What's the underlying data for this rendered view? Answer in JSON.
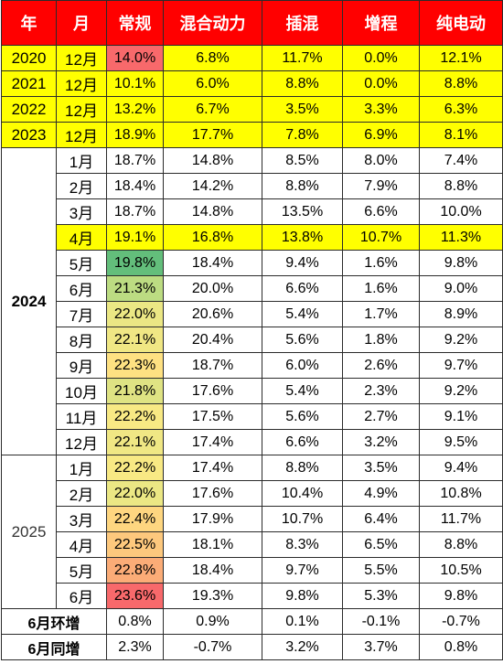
{
  "headers": [
    "年",
    "月",
    "常规",
    "混合动力",
    "插混",
    "增程",
    "纯电动"
  ],
  "rows": [
    {
      "year": "2020",
      "month": "12月",
      "vals": [
        "14.0%",
        "6.8%",
        "11.7%",
        "0.0%",
        "12.1%"
      ],
      "hl": true,
      "cg": "#f8696b"
    },
    {
      "year": "2021",
      "month": "12月",
      "vals": [
        "10.1%",
        "6.0%",
        "8.8%",
        "0.0%",
        "8.8%"
      ],
      "hl": true,
      "cg": ""
    },
    {
      "year": "2022",
      "month": "12月",
      "vals": [
        "13.2%",
        "6.7%",
        "3.5%",
        "3.3%",
        "6.3%"
      ],
      "hl": true,
      "cg": ""
    },
    {
      "year": "2023",
      "month": "12月",
      "vals": [
        "18.9%",
        "17.7%",
        "7.8%",
        "6.9%",
        "8.1%"
      ],
      "hl": true,
      "cg": ""
    },
    {
      "month": "1月",
      "vals": [
        "18.7%",
        "14.8%",
        "8.5%",
        "8.0%",
        "7.4%"
      ],
      "hl": false,
      "cg": ""
    },
    {
      "month": "2月",
      "vals": [
        "18.4%",
        "14.2%",
        "8.8%",
        "7.9%",
        "8.8%"
      ],
      "hl": false,
      "cg": ""
    },
    {
      "month": "3月",
      "vals": [
        "18.7%",
        "14.8%",
        "13.5%",
        "6.6%",
        "10.0%"
      ],
      "hl": false,
      "cg": ""
    },
    {
      "month": "4月",
      "vals": [
        "19.1%",
        "16.8%",
        "13.8%",
        "10.7%",
        "11.3%"
      ],
      "hl": true,
      "cg": ""
    },
    {
      "month": "5月",
      "vals": [
        "19.8%",
        "18.4%",
        "9.4%",
        "1.6%",
        "9.8%"
      ],
      "hl": false,
      "cg": "#63be7b"
    },
    {
      "month": "6月",
      "vals": [
        "21.3%",
        "20.0%",
        "6.6%",
        "1.6%",
        "9.0%"
      ],
      "hl": false,
      "cg": "#bcdc82"
    },
    {
      "month": "7月",
      "vals": [
        "22.0%",
        "20.6%",
        "5.4%",
        "1.7%",
        "8.9%"
      ],
      "hl": false,
      "cg": "#ebe784"
    },
    {
      "month": "8月",
      "vals": [
        "22.1%",
        "20.4%",
        "5.6%",
        "1.8%",
        "9.2%"
      ],
      "hl": false,
      "cg": "#f0e784"
    },
    {
      "month": "9月",
      "vals": [
        "22.3%",
        "18.7%",
        "6.0%",
        "2.6%",
        "9.7%"
      ],
      "hl": false,
      "cg": "#fee182"
    },
    {
      "month": "10月",
      "vals": [
        "21.8%",
        "17.6%",
        "5.4%",
        "2.3%",
        "9.2%"
      ],
      "hl": false,
      "cg": "#dfe383"
    },
    {
      "month": "11月",
      "vals": [
        "22.2%",
        "17.5%",
        "5.6%",
        "2.7%",
        "9.1%"
      ],
      "hl": false,
      "cg": "#f8e984"
    },
    {
      "month": "12月",
      "vals": [
        "22.1%",
        "17.4%",
        "6.6%",
        "3.2%",
        "9.5%"
      ],
      "hl": false,
      "cg": "#f0e784"
    },
    {
      "month": "1月",
      "vals": [
        "22.2%",
        "17.4%",
        "8.8%",
        "3.5%",
        "9.4%"
      ],
      "hl": false,
      "cg": "#f8e984"
    },
    {
      "month": "2月",
      "vals": [
        "22.0%",
        "17.6%",
        "10.4%",
        "4.9%",
        "10.8%"
      ],
      "hl": false,
      "cg": "#ebe784"
    },
    {
      "month": "3月",
      "vals": [
        "22.4%",
        "17.9%",
        "10.7%",
        "6.4%",
        "11.7%"
      ],
      "hl": false,
      "cg": "#fed680"
    },
    {
      "month": "4月",
      "vals": [
        "22.5%",
        "18.1%",
        "8.3%",
        "6.5%",
        "8.8%"
      ],
      "hl": false,
      "cg": "#fdc87d"
    },
    {
      "month": "5月",
      "vals": [
        "22.8%",
        "18.4%",
        "9.7%",
        "5.5%",
        "10.5%"
      ],
      "hl": false,
      "cg": "#fbac77"
    },
    {
      "month": "6月",
      "vals": [
        "23.6%",
        "19.3%",
        "9.8%",
        "5.3%",
        "9.8%"
      ],
      "hl": false,
      "cg": "#f8696b"
    },
    {
      "label": "6月环增",
      "vals": [
        "0.8%",
        "0.9%",
        "0.1%",
        "-0.1%",
        "-0.7%"
      ],
      "hl": false,
      "cg": ""
    },
    {
      "label": "6月同增",
      "vals": [
        "2.3%",
        "-0.7%",
        "3.2%",
        "3.7%",
        "0.8%"
      ],
      "hl": false,
      "cg": ""
    }
  ],
  "groups": {
    "y2024": "2024",
    "y2025": "2025"
  }
}
